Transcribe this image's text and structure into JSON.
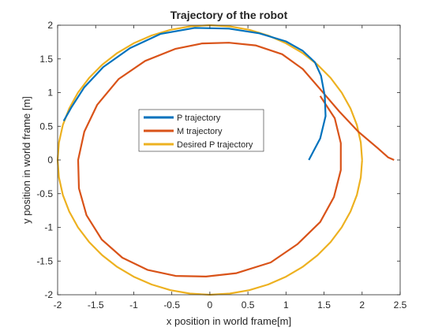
{
  "chart_data": {
    "type": "line",
    "title": "Trajectory of the robot",
    "xlabel": "x position in world frame[m]",
    "ylabel": "y position in world frame [m]",
    "xlim": [
      -2,
      2.5
    ],
    "ylim": [
      -2,
      2
    ],
    "xticks": [
      -2,
      -1.5,
      -1,
      -0.5,
      0,
      0.5,
      1,
      1.5,
      2,
      2.5
    ],
    "yticks": [
      -2,
      -1.5,
      -1,
      -0.5,
      0,
      0.5,
      1,
      1.5,
      2
    ],
    "xtick_labels": [
      "-2",
      "-1.5",
      "-1",
      "-0.5",
      "0",
      "0.5",
      "1",
      "1.5",
      "2",
      "2.5"
    ],
    "ytick_labels": [
      "-2",
      "-1.5",
      "-1",
      "-0.5",
      "0",
      "0.5",
      "1",
      "1.5",
      "2"
    ],
    "grid": false,
    "box": true,
    "legend": {
      "position": "center-left"
    },
    "series": [
      {
        "name": "P trajectory",
        "color": "#0072BD",
        "x": [
          1.3,
          1.45,
          1.52,
          1.51,
          1.46,
          1.38,
          1.22,
          1.0,
          0.65,
          0.25,
          -0.2,
          -0.65,
          -1.05,
          -1.4,
          -1.65,
          -1.82,
          -1.92
        ],
        "y": [
          0.0,
          0.32,
          0.65,
          0.95,
          1.25,
          1.45,
          1.62,
          1.76,
          1.88,
          1.95,
          1.96,
          1.87,
          1.66,
          1.38,
          1.08,
          0.78,
          0.58
        ]
      },
      {
        "name": "M trajectory",
        "color": "#D95319",
        "x": [
          2.42,
          2.34,
          2.2,
          1.95,
          1.7,
          1.45,
          1.22,
          0.95,
          0.6,
          0.25,
          -0.1,
          -0.45,
          -0.85,
          -1.2,
          -1.48,
          -1.65,
          -1.73,
          -1.72,
          -1.62,
          -1.42,
          -1.15,
          -0.82,
          -0.45,
          -0.05,
          0.35,
          0.8,
          1.15,
          1.45,
          1.63,
          1.72,
          1.72,
          1.64,
          1.45
        ],
        "y": [
          0.0,
          0.04,
          0.18,
          0.42,
          0.72,
          1.05,
          1.35,
          1.57,
          1.7,
          1.74,
          1.73,
          1.65,
          1.47,
          1.2,
          0.82,
          0.42,
          0.0,
          -0.42,
          -0.82,
          -1.18,
          -1.45,
          -1.63,
          -1.72,
          -1.73,
          -1.68,
          -1.52,
          -1.25,
          -0.92,
          -0.55,
          -0.15,
          0.25,
          0.62,
          0.95
        ]
      },
      {
        "name": "Desired P trajectory",
        "color": "#EDB120",
        "circle": {
          "cx": 0,
          "cy": 0,
          "r": 2
        }
      }
    ]
  }
}
